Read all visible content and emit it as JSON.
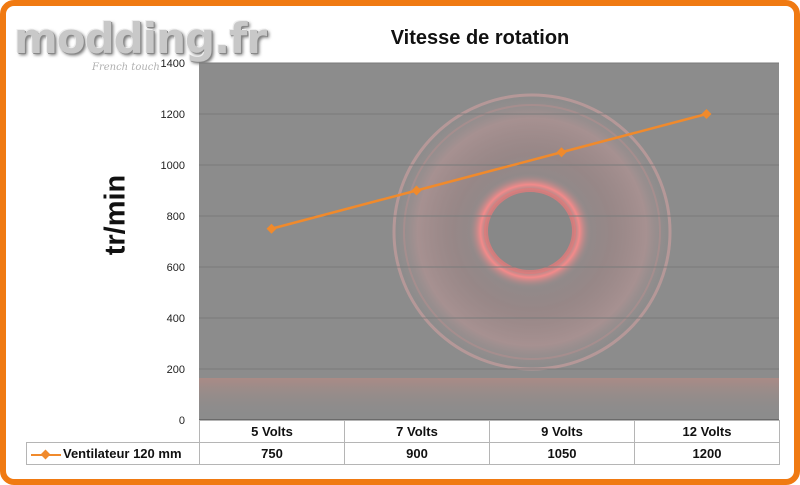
{
  "logo": {
    "text": "modding.fr",
    "tagline": "French touch"
  },
  "colors": {
    "frame": "#f07a12",
    "series": "#f08a2c",
    "plot_bg": "#8c8c8c"
  },
  "chart_data": {
    "type": "line",
    "title": "Vitesse de rotation",
    "ylabel": "tr/min",
    "xlabel": "",
    "ylim": [
      0,
      1400
    ],
    "y_ticks": [
      0,
      200,
      400,
      600,
      800,
      1000,
      1200,
      1400
    ],
    "categories": [
      "5 Volts",
      "7 Volts",
      "9 Volts",
      "12 Volts"
    ],
    "series": [
      {
        "name": "Ventilateur 120 mm",
        "values": [
          750,
          900,
          1050,
          1200
        ]
      }
    ],
    "grid": true,
    "legend": "data-table",
    "data_table": true,
    "marker": "diamond"
  }
}
